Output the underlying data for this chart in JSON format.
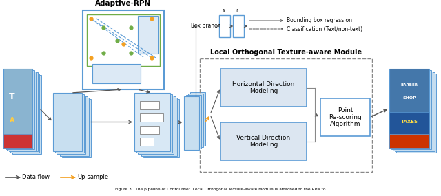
{
  "adaptive_rpn_label": "Adaptive-RPN",
  "lotm_label": "Local Orthogonal Texture-aware Module",
  "box_branch_label": "Box branch",
  "fc1_label": "fc",
  "fc2_label": "fc",
  "bb_reg_label": "Bounding box regression",
  "cls_label": "Classification (Text/non-text)",
  "hdm_label": "Horizontal Direction\nModeling",
  "vdm_label": "Vertical Direction\nModeling",
  "prs_label": "Point\nRe-scoring\nAlgorithm",
  "legend_flow": "Data flow",
  "legend_upsample": "Up-sample",
  "bg_color": "#ffffff",
  "blue": "#5b9bd5",
  "light_blue": "#dce6f1",
  "arrow_color": "#555555",
  "orange_color": "#f4a020",
  "gray_arrow": "#808080"
}
